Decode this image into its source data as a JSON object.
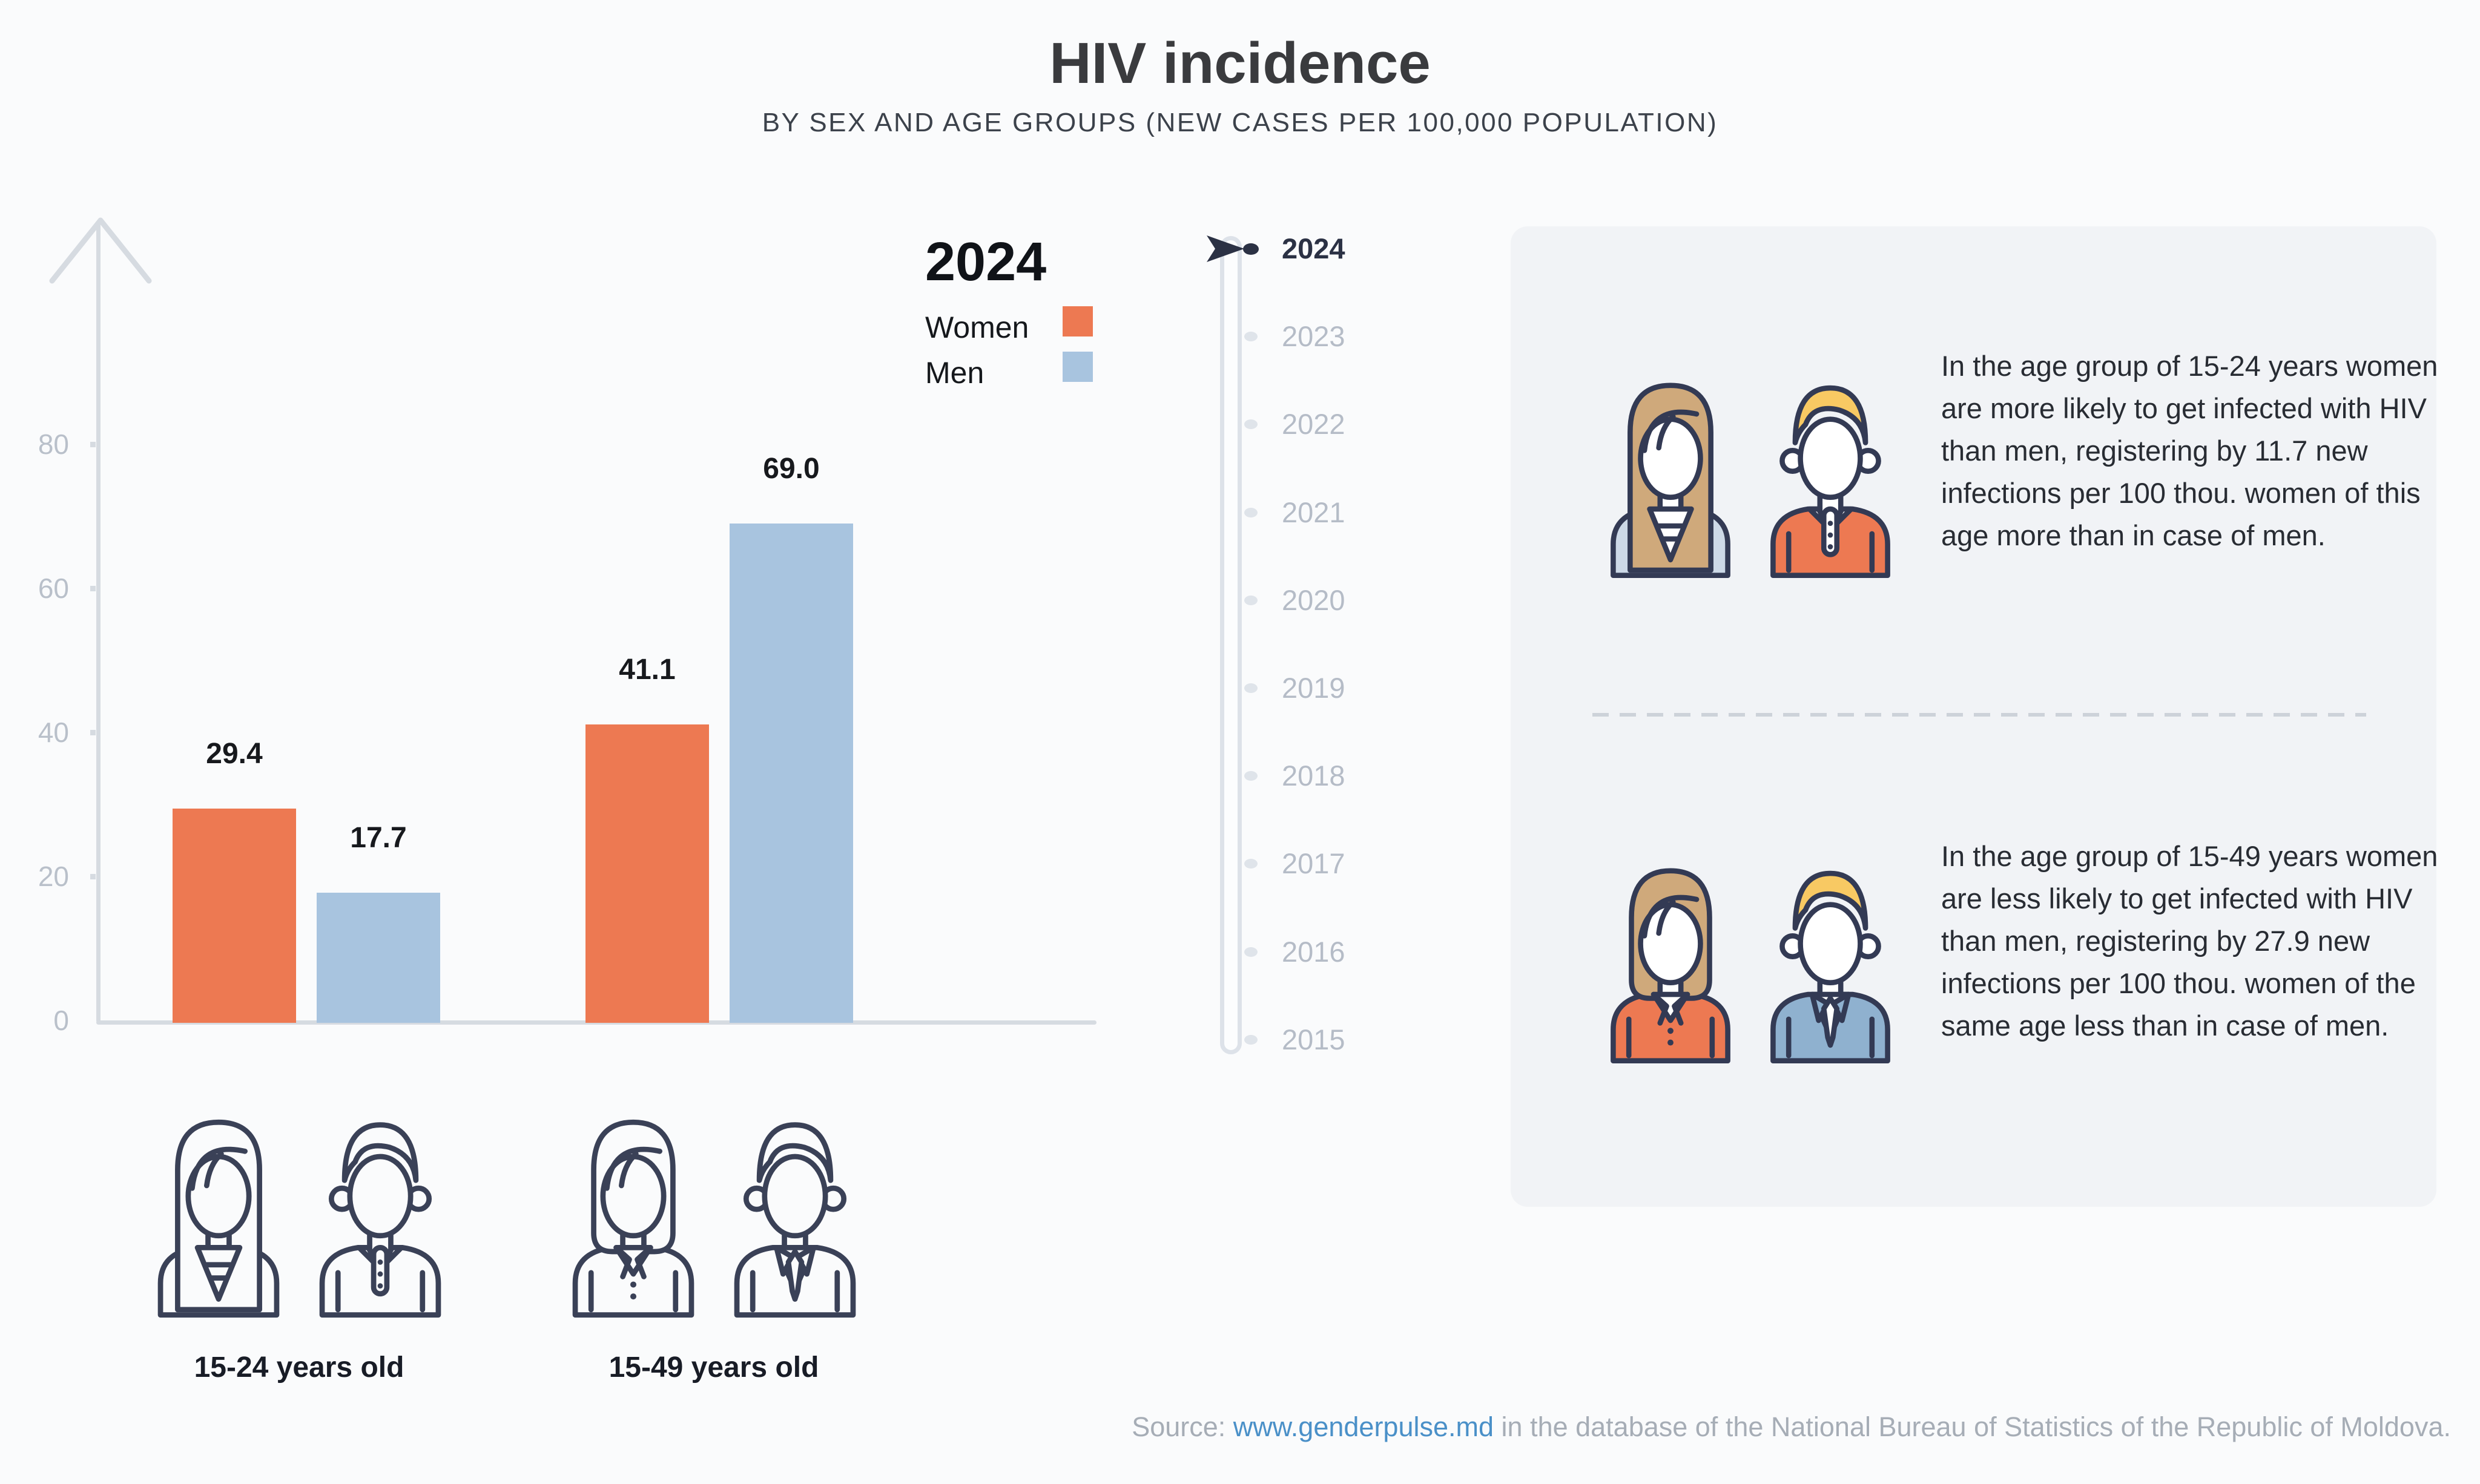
{
  "title": "HIV incidence",
  "subtitle": "BY SEX AND AGE GROUPS (NEW CASES PER 100,000 POPULATION)",
  "legend": {
    "year": "2024",
    "women": "Women",
    "men": "Men"
  },
  "chart_data": {
    "type": "bar",
    "title": "HIV incidence",
    "subtitle": "BY SEX AND AGE GROUPS (NEW CASES PER 100,000 POPULATION)",
    "categories": [
      "15-24 years old",
      "15-49 years old"
    ],
    "series": [
      {
        "name": "Women",
        "color": "#ed7952",
        "values": [
          29.4,
          41.1
        ]
      },
      {
        "name": "Men",
        "color": "#a8c4df",
        "values": [
          17.7,
          69.0
        ]
      }
    ],
    "value_labels": [
      [
        "29.4",
        "41.1"
      ],
      [
        "17.7",
        "69.0"
      ]
    ],
    "yticks": [
      0,
      20,
      40,
      60,
      80
    ],
    "ylim": [
      0,
      104
    ],
    "grid": false,
    "legend_position": "top-right"
  },
  "timeline": {
    "years": [
      "2024",
      "2023",
      "2022",
      "2021",
      "2020",
      "2019",
      "2018",
      "2017",
      "2016",
      "2015"
    ],
    "selected": "2024"
  },
  "panel": {
    "block1": {
      "text": "In the age group of 15-24 years women are more likely to get infected with HIV than men, registering by 11.7 new infections per 100 thou. women of this age more than in case of men."
    },
    "block2": {
      "text": "In the age group of 15-49 years women are less likely to get infected with HIV than men, registering by 27.9 new infections per 100 thou. women of the same age less than in case of men."
    }
  },
  "footer": {
    "source_prefix": "Source: ",
    "source_link": "www.genderpulse.md",
    "source_suffix": " in the database of the National Bureau of Statistics of the Republic of Moldova."
  },
  "icons": {
    "y_axis_arrow": "up-arrow-icon",
    "timeline_pointer": "right-arrow-icon",
    "panel1": [
      "woman-long-hair-blue-top-icon",
      "man-blonde-orange-polo-icon"
    ],
    "panel2": [
      "woman-bob-orange-blazer-icon",
      "man-blonde-blue-suit-icon"
    ],
    "bottom1": [
      "woman-long-hair-outline-icon",
      "man-polo-outline-icon"
    ],
    "bottom2": [
      "woman-bob-outline-icon",
      "man-suit-outline-icon"
    ]
  },
  "colors": {
    "background": "#fafbfc",
    "women": "#ed7952",
    "men": "#a8c4df",
    "navy_outline": "#333a54",
    "axis": "#d6dbe1",
    "muted_text": "#b5bcc7",
    "selected_year": "#2b3144",
    "panel_bg": "#f1f3f6",
    "body_text": "#282c33",
    "source_gray": "#a6adb6",
    "link_blue": "#4a90c8",
    "hair_tan": "#cfa97b",
    "hair_blonde": "#f8c963",
    "top_light_blue": "#cdd9e7",
    "suit_blue": "#8fb1cf"
  }
}
